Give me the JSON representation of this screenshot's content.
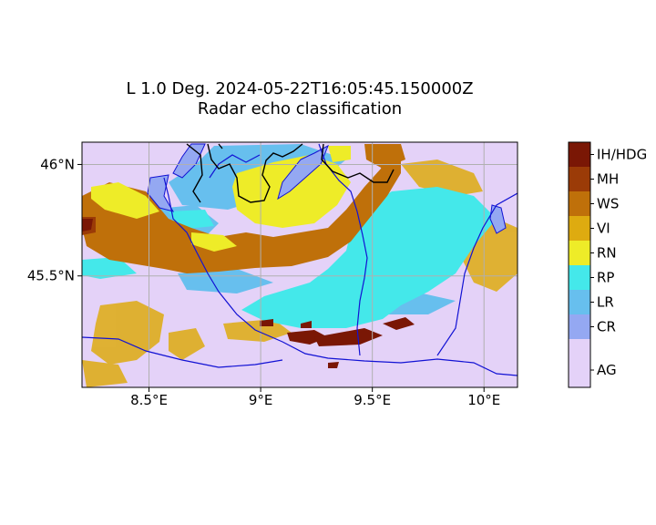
{
  "title_line1": "L 1.0 Deg. 2024-05-22T16:05:45.150000Z",
  "title_line2": "Radar echo classification",
  "map": {
    "lon_range": [
      8.2,
      10.15
    ],
    "lat_range": [
      45.0,
      46.1
    ],
    "lon_ticks": [
      {
        "value": 8.5,
        "label": "8.5°E"
      },
      {
        "value": 9.0,
        "label": "9°E"
      },
      {
        "value": 9.5,
        "label": "9.5°E"
      },
      {
        "value": 10.0,
        "label": "10°E"
      }
    ],
    "lat_ticks": [
      {
        "value": 46.0,
        "label": "46°N"
      },
      {
        "value": 45.5,
        "label": "45.5°N"
      }
    ],
    "gridlines": true,
    "background_class": "AG"
  },
  "colorbar": {
    "classes": [
      {
        "label": "IH/HDG",
        "color": "#7a1705"
      },
      {
        "label": "MH",
        "color": "#9b3b07"
      },
      {
        "label": "WS",
        "color": "#bf700a"
      },
      {
        "label": "VI",
        "color": "#deab10"
      },
      {
        "label": "RN",
        "color": "#eeec28"
      },
      {
        "label": "RP",
        "color": "#44e8ea"
      },
      {
        "label": "LR",
        "color": "#67bfee"
      },
      {
        "label": "CR",
        "color": "#94a8f2"
      },
      {
        "label": "AG",
        "color": "#e4d2f8"
      }
    ]
  },
  "colors": {
    "border": "#000000",
    "rivers_lakes": "#1212d4"
  }
}
